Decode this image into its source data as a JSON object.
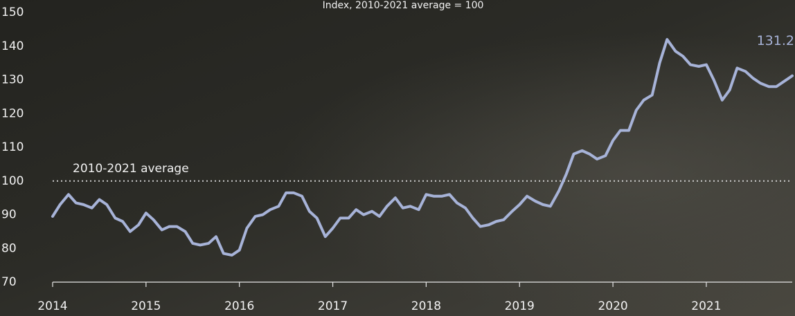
{
  "chart_data": {
    "type": "line",
    "subtitle": "Index, 2010-2021 average = 100",
    "x": [
      2014,
      2014.08,
      2014.17,
      2014.25,
      2014.33,
      2014.42,
      2014.5,
      2014.58,
      2014.67,
      2014.75,
      2014.83,
      2014.92,
      2015,
      2015.08,
      2015.17,
      2015.25,
      2015.33,
      2015.42,
      2015.5,
      2015.58,
      2015.67,
      2015.75,
      2015.83,
      2015.92,
      2016,
      2016.08,
      2016.17,
      2016.25,
      2016.33,
      2016.42,
      2016.5,
      2016.58,
      2016.67,
      2016.75,
      2016.83,
      2016.92,
      2017,
      2017.08,
      2017.17,
      2017.25,
      2017.33,
      2017.42,
      2017.5,
      2017.58,
      2017.67,
      2017.75,
      2017.83,
      2017.92,
      2018,
      2018.08,
      2018.17,
      2018.25,
      2018.33,
      2018.42,
      2018.5,
      2018.58,
      2018.67,
      2018.75,
      2018.83,
      2018.92,
      2019,
      2019.08,
      2019.17,
      2019.25,
      2019.33,
      2019.42,
      2019.5,
      2019.58,
      2019.67,
      2019.75,
      2019.83,
      2019.92,
      2020,
      2020.08,
      2020.17,
      2020.25,
      2020.33,
      2020.42,
      2020.5,
      2020.58,
      2020.67,
      2020.75,
      2020.83,
      2020.92,
      2021,
      2021.08,
      2021.17,
      2021.25,
      2021.33,
      2021.42,
      2021.5,
      2021.58,
      2021.67,
      2021.75,
      2021.83,
      2021.92
    ],
    "series": [
      {
        "color": "#a7b3d8",
        "values": [
          89.5,
          93,
          96,
          93.5,
          93,
          92,
          94.5,
          93,
          89,
          88,
          85,
          87,
          90.5,
          88.5,
          85.5,
          86.5,
          86.5,
          85,
          81.5,
          81,
          81.5,
          83.5,
          78.5,
          78,
          79.5,
          86,
          89.5,
          90,
          91.5,
          92.5,
          96.5,
          96.5,
          95.5,
          91,
          89,
          83.5,
          86,
          89,
          89,
          91.5,
          90,
          91,
          89.5,
          92.5,
          95,
          92,
          92.5,
          91.5,
          96,
          95.5,
          95.5,
          96,
          93.5,
          92,
          89,
          86.5,
          87,
          88,
          88.5,
          91,
          93,
          95.5,
          94,
          93,
          92.5,
          97,
          102,
          108,
          109,
          108,
          106.5,
          107.5,
          112,
          115,
          115,
          121,
          124,
          125.5,
          135,
          142,
          138.5,
          137,
          134.5,
          134,
          134.5,
          130,
          124,
          127,
          133.5,
          132.5,
          130.5,
          129,
          128,
          128,
          129.5,
          131.2
        ]
      }
    ],
    "reference": {
      "value": 100,
      "label": "2010-2021 average"
    },
    "xlim": [
      2014,
      2021.92
    ],
    "xticks": [
      2014,
      2015,
      2016,
      2017,
      2018,
      2019,
      2020,
      2021
    ],
    "ylim": [
      70,
      150
    ],
    "yticks": [
      70,
      80,
      90,
      100,
      110,
      120,
      130,
      140,
      150
    ]
  }
}
